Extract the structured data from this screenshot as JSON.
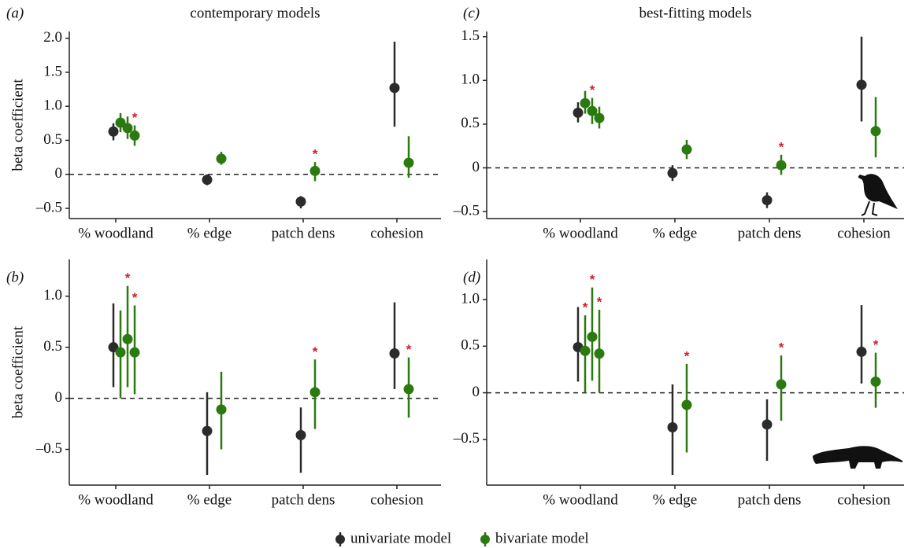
{
  "chart_data": [
    {
      "type": "errorbar",
      "label": "(a)",
      "title": "contemporary models",
      "y_label": "beta coefficient",
      "categories": [
        "% woodland",
        "% edge",
        "patch dens",
        "cohesion"
      ],
      "ylim": [
        -0.65,
        2.1
      ],
      "yticks": [
        {
          "value": -0.5,
          "label": "–0.5"
        },
        0,
        0.5,
        {
          "value": 1,
          "label": "1.0"
        },
        1.5,
        {
          "value": 2,
          "label": "2.0"
        }
      ],
      "reference_line": 0,
      "series": [
        {
          "name": "univariate model",
          "color": "#2b2b2b",
          "values": [
            [
              0.63
            ],
            [
              -0.08
            ],
            [
              -0.4
            ],
            [
              1.27
            ]
          ],
          "low": [
            [
              0.5
            ],
            [
              -0.16
            ],
            [
              -0.5
            ],
            [
              0.7
            ]
          ],
          "high": [
            [
              0.75
            ],
            [
              0.0
            ],
            [
              -0.32
            ],
            [
              1.95
            ]
          ],
          "significance": [
            [
              null
            ],
            [
              null
            ],
            [
              null
            ],
            [
              null
            ]
          ]
        },
        {
          "name": "bivariate model",
          "color": "#2a7a10",
          "values": [
            [
              0.76,
              0.68,
              0.57
            ],
            [
              0.23
            ],
            [
              0.05
            ],
            [
              0.17
            ]
          ],
          "low": [
            [
              0.62,
              0.52,
              0.42
            ],
            [
              0.14
            ],
            [
              -0.1
            ],
            [
              -0.05
            ]
          ],
          "high": [
            [
              0.9,
              0.85,
              0.72
            ],
            [
              0.33
            ],
            [
              0.18
            ],
            [
              0.56
            ]
          ],
          "significance": [
            [
              null,
              null,
              "*"
            ],
            [
              null
            ],
            [
              "*"
            ],
            [
              null
            ]
          ]
        }
      ]
    },
    {
      "type": "errorbar",
      "label": "(c)",
      "title": "best-fitting models",
      "categories": [
        "% woodland",
        "% edge",
        "patch dens",
        "cohesion"
      ],
      "ylim": [
        -0.58,
        1.56
      ],
      "yticks": [
        {
          "value": -0.5,
          "label": "–0.5"
        },
        0,
        0.5,
        {
          "value": 1,
          "label": "1.0"
        },
        1.5
      ],
      "reference_line": 0,
      "series": [
        {
          "name": "univariate model",
          "color": "#2b2b2b",
          "values": [
            [
              0.63
            ],
            [
              -0.06
            ],
            [
              -0.37
            ],
            [
              0.95
            ]
          ],
          "low": [
            [
              0.52
            ],
            [
              -0.15
            ],
            [
              -0.46
            ],
            [
              0.53
            ]
          ],
          "high": [
            [
              0.75
            ],
            [
              0.03
            ],
            [
              -0.28
            ],
            [
              1.5
            ]
          ],
          "significance": [
            [
              null
            ],
            [
              null
            ],
            [
              null
            ],
            [
              null
            ]
          ]
        },
        {
          "name": "bivariate model",
          "color": "#2a7a10",
          "values": [
            [
              0.74,
              0.65,
              0.57
            ],
            [
              0.21
            ],
            [
              0.03
            ],
            [
              0.42
            ]
          ],
          "low": [
            [
              0.62,
              0.5,
              0.45
            ],
            [
              0.1
            ],
            [
              -0.08
            ],
            [
              0.12
            ]
          ],
          "high": [
            [
              0.88,
              0.8,
              0.7
            ],
            [
              0.32
            ],
            [
              0.15
            ],
            [
              0.81
            ]
          ],
          "significance": [
            [
              null,
              "*",
              null
            ],
            [
              null
            ],
            [
              "*"
            ],
            [
              null
            ]
          ]
        }
      ]
    },
    {
      "type": "errorbar",
      "label": "(b)",
      "y_label": "beta coefficient",
      "categories": [
        "% woodland",
        "% edge",
        "patch dens",
        "cohesion"
      ],
      "ylim": [
        -0.85,
        1.36
      ],
      "yticks": [
        {
          "value": -0.5,
          "label": "–0.5"
        },
        0,
        0.5,
        {
          "value": 1,
          "label": "1.0"
        }
      ],
      "reference_line": 0,
      "series": [
        {
          "name": "univariate model",
          "color": "#2b2b2b",
          "values": [
            [
              0.5
            ],
            [
              -0.32
            ],
            [
              -0.36
            ],
            [
              0.44
            ]
          ],
          "low": [
            [
              0.11
            ],
            [
              -0.75
            ],
            [
              -0.73
            ],
            [
              0.09
            ]
          ],
          "high": [
            [
              0.93
            ],
            [
              0.06
            ],
            [
              -0.09
            ],
            [
              0.94
            ]
          ],
          "significance": [
            [
              null
            ],
            [
              null
            ],
            [
              null
            ],
            [
              null
            ]
          ]
        },
        {
          "name": "bivariate model",
          "color": "#2a7a10",
          "values": [
            [
              0.45,
              0.58,
              0.45
            ],
            [
              -0.11
            ],
            [
              0.06
            ],
            [
              0.09
            ]
          ],
          "low": [
            [
              0.0,
              0.11,
              0.04
            ],
            [
              -0.5
            ],
            [
              -0.3
            ],
            [
              -0.19
            ]
          ],
          "high": [
            [
              0.86,
              1.1,
              0.91
            ],
            [
              0.26
            ],
            [
              0.38
            ],
            [
              0.4
            ]
          ],
          "significance": [
            [
              null,
              "*",
              "*"
            ],
            [
              null
            ],
            [
              "*"
            ],
            [
              "*"
            ]
          ]
        }
      ]
    },
    {
      "type": "errorbar",
      "label": "(d)",
      "categories": [
        "% woodland",
        "% edge",
        "patch dens",
        "cohesion"
      ],
      "ylim": [
        -0.99,
        1.43
      ],
      "yticks": [
        {
          "value": -0.5,
          "label": "–0.5"
        },
        0,
        0.5,
        {
          "value": 1,
          "label": "1.0"
        }
      ],
      "reference_line": 0,
      "series": [
        {
          "name": "univariate model",
          "color": "#2b2b2b",
          "values": [
            [
              0.49
            ],
            [
              -0.37
            ],
            [
              -0.34
            ],
            [
              0.44
            ]
          ],
          "low": [
            [
              0.12
            ],
            [
              -0.88
            ],
            [
              -0.73
            ],
            [
              0.1
            ]
          ],
          "high": [
            [
              0.92
            ],
            [
              0.09
            ],
            [
              -0.07
            ],
            [
              0.94
            ]
          ],
          "significance": [
            [
              null
            ],
            [
              null
            ],
            [
              null
            ],
            [
              null
            ]
          ]
        },
        {
          "name": "bivariate model",
          "color": "#2a7a10",
          "values": [
            [
              0.45,
              0.6,
              0.42
            ],
            [
              -0.13
            ],
            [
              0.09
            ],
            [
              0.12
            ]
          ],
          "low": [
            [
              0.0,
              0.13,
              0.0
            ],
            [
              -0.64
            ],
            [
              -0.3
            ],
            [
              -0.16
            ]
          ],
          "high": [
            [
              0.83,
              1.13,
              0.89
            ],
            [
              0.31
            ],
            [
              0.4
            ],
            [
              0.43
            ]
          ],
          "significance": [
            [
              "*",
              "*",
              "*"
            ],
            [
              "*"
            ],
            [
              "*"
            ],
            [
              "*"
            ]
          ]
        }
      ]
    }
  ]
}
